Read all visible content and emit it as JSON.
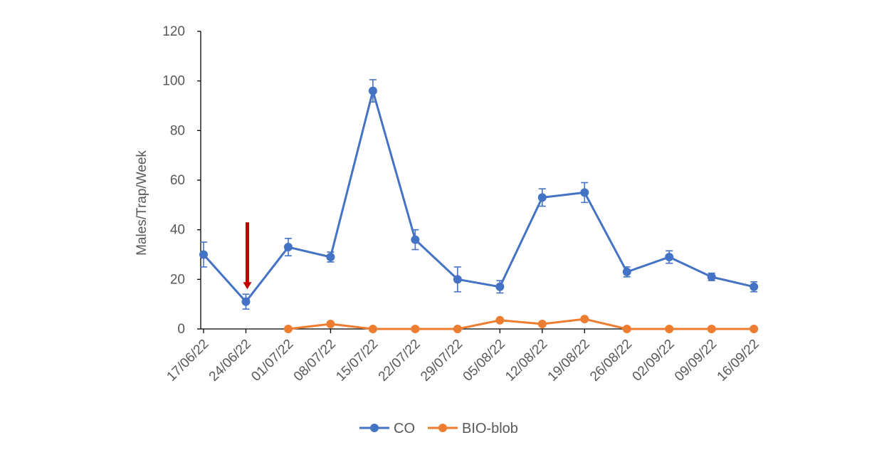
{
  "chart_data": {
    "type": "line",
    "title": "",
    "xlabel": "",
    "ylabel": "Males/Trap/Week",
    "ylim": [
      0,
      120
    ],
    "yticks": [
      0,
      20,
      40,
      60,
      80,
      100,
      120
    ],
    "grid": false,
    "legend": "bottom-center",
    "categories": [
      "17/06/22",
      "24/06/22",
      "01/07/22",
      "08/07/22",
      "15/07/22",
      "22/07/22",
      "29/07/22",
      "05/08/22",
      "12/08/22",
      "19/08/22",
      "26/08/22",
      "02/09/22",
      "09/09/22",
      "16/09/22"
    ],
    "series": [
      {
        "name": "CO",
        "color": "#4472C4",
        "values": [
          30,
          11,
          33,
          29,
          96,
          36,
          20,
          17,
          53,
          55,
          23,
          29,
          21,
          17
        ],
        "errors": [
          5,
          3,
          3.5,
          2,
          4.5,
          4,
          5,
          2.5,
          3.5,
          4,
          2,
          2.5,
          1.5,
          2
        ]
      },
      {
        "name": "BIO-blob",
        "color": "#ED7D31",
        "values": [
          null,
          null,
          0,
          2,
          0,
          0,
          0,
          3.5,
          2,
          4,
          0,
          0,
          0,
          0
        ],
        "errors": []
      }
    ],
    "annotations": [
      {
        "type": "arrow",
        "at_category": "24/06/22",
        "from_y": 43,
        "to_y": 16,
        "color": "#C00000"
      }
    ]
  }
}
